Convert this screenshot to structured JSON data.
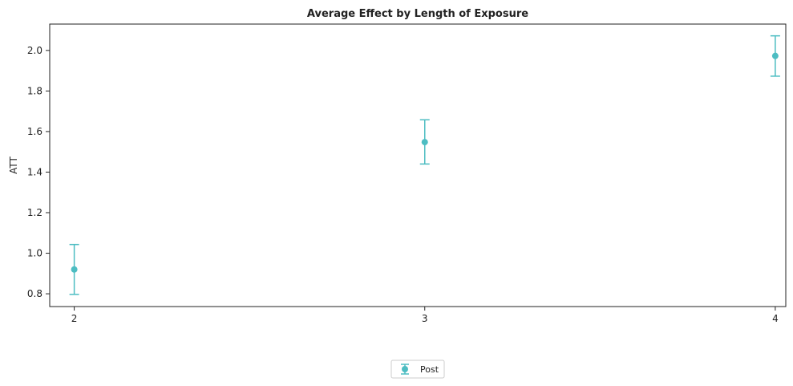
{
  "chart_data": {
    "type": "scatter",
    "title": "Average Effect by Length of Exposure",
    "xlabel": "",
    "ylabel": "ATT",
    "x": [
      2,
      3,
      4
    ],
    "xticks": [
      "2",
      "3",
      "4"
    ],
    "xlim": [
      1.93,
      4.03
    ],
    "yticks": [
      "0.8",
      "1.0",
      "1.2",
      "1.4",
      "1.6",
      "1.8",
      "2.0"
    ],
    "ylim": [
      0.737,
      2.13
    ],
    "grid": false,
    "legend_position": "bottom-center",
    "series": [
      {
        "name": "Post",
        "color": "#4dbdc2",
        "marker": "circle",
        "y": [
          0.92,
          1.548,
          1.973
        ],
        "ci_low": [
          0.797,
          1.44,
          1.873
        ],
        "ci_high": [
          1.043,
          1.658,
          2.072
        ]
      }
    ]
  }
}
